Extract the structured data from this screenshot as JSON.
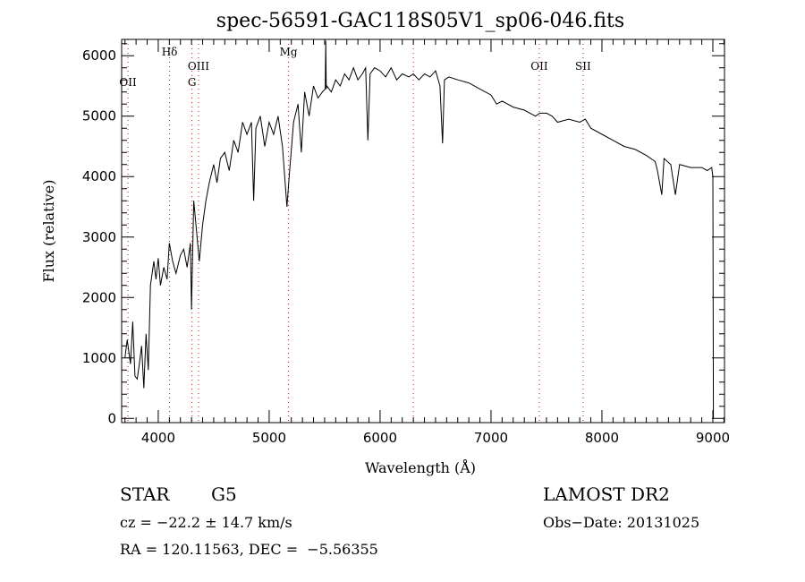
{
  "chart_data": {
    "type": "line",
    "title": "spec-56591-GAC118S05V1_sp06-046.fits",
    "xlabel": "Wavelength (Å)",
    "ylabel": "Flux (relative)",
    "xlim": [
      3670,
      9105
    ],
    "ylim": [
      -70,
      6270
    ],
    "xticks": [
      4000,
      5000,
      6000,
      7000,
      8000,
      9000
    ],
    "yticks": [
      0,
      1000,
      2000,
      3000,
      4000,
      5000,
      6000
    ],
    "grid": false,
    "line_color": "#000000",
    "marker_color": "#aa2222",
    "lines": [
      {
        "label": "OII",
        "wavelength": 3727,
        "row": 2
      },
      {
        "label": "Hδ",
        "wavelength": 4102,
        "row": 0
      },
      {
        "label": "G",
        "wavelength": 4304,
        "row": 2
      },
      {
        "label": "OIII",
        "wavelength": 4363,
        "row": 1
      },
      {
        "label": "Mg",
        "wavelength": 5175,
        "row": 0
      },
      {
        "label": "",
        "wavelength": 6300,
        "row": 0
      },
      {
        "label": "OII",
        "wavelength": 7435,
        "row": 1
      },
      {
        "label": "SII",
        "wavelength": 7830,
        "row": 1
      }
    ],
    "series": [
      {
        "name": "flux",
        "x": [
          3700,
          3720,
          3750,
          3770,
          3790,
          3810,
          3830,
          3850,
          3870,
          3890,
          3910,
          3930,
          3960,
          3980,
          4000,
          4020,
          4050,
          4080,
          4100,
          4130,
          4160,
          4200,
          4230,
          4260,
          4290,
          4300,
          4320,
          4340,
          4370,
          4400,
          4430,
          4460,
          4500,
          4530,
          4560,
          4600,
          4640,
          4680,
          4720,
          4760,
          4800,
          4840,
          4860,
          4880,
          4920,
          4960,
          5000,
          5040,
          5080,
          5120,
          5160,
          5180,
          5220,
          5260,
          5290,
          5320,
          5360,
          5400,
          5440,
          5480,
          5505,
          5510,
          5515,
          5520,
          5560,
          5600,
          5640,
          5680,
          5720,
          5760,
          5800,
          5840,
          5870,
          5890,
          5910,
          5950,
          6000,
          6050,
          6100,
          6150,
          6200,
          6260,
          6300,
          6350,
          6400,
          6450,
          6500,
          6540,
          6563,
          6580,
          6620,
          6700,
          6800,
          6900,
          7000,
          7050,
          7100,
          7200,
          7300,
          7400,
          7440,
          7500,
          7550,
          7600,
          7700,
          7800,
          7850,
          7900,
          8000,
          8100,
          8200,
          8300,
          8400,
          8480,
          8500,
          8540,
          8560,
          8620,
          8662,
          8700,
          8800,
          8900,
          8950,
          8990,
          9000,
          9005
        ],
        "y": [
          1000,
          1300,
          900,
          1600,
          700,
          650,
          900,
          1200,
          500,
          1400,
          800,
          2200,
          2600,
          2300,
          2650,
          2200,
          2500,
          2300,
          2900,
          2600,
          2400,
          2700,
          2800,
          2500,
          2900,
          1800,
          3600,
          3200,
          2600,
          3200,
          3600,
          3900,
          4200,
          3900,
          4300,
          4400,
          4100,
          4600,
          4400,
          4900,
          4700,
          4900,
          3600,
          4800,
          5000,
          4500,
          4900,
          4700,
          5000,
          4500,
          3500,
          4000,
          4900,
          5200,
          4400,
          5400,
          5000,
          5500,
          5300,
          5400,
          5450,
          6250,
          5450,
          5500,
          5400,
          5600,
          5500,
          5700,
          5600,
          5800,
          5600,
          5700,
          5800,
          4600,
          5700,
          5800,
          5750,
          5650,
          5800,
          5600,
          5700,
          5650,
          5700,
          5600,
          5700,
          5650,
          5750,
          5500,
          4550,
          5600,
          5650,
          5600,
          5550,
          5450,
          5350,
          5200,
          5250,
          5150,
          5100,
          5000,
          5050,
          5050,
          5000,
          4900,
          4950,
          4900,
          4950,
          4800,
          4700,
          4600,
          4500,
          4450,
          4350,
          4250,
          4100,
          3700,
          4300,
          4200,
          3700,
          4200,
          4150,
          4150,
          4100,
          4150,
          4000,
          0
        ]
      }
    ]
  },
  "info": {
    "class": "STAR",
    "subclass": "G5",
    "survey": "LAMOST DR2",
    "cz": "cz = −22.2 ± 14.7 km/s",
    "obs_date": "Obs−Date: 20131025",
    "coords": "RA = 120.11563, DEC =  −5.56355"
  }
}
